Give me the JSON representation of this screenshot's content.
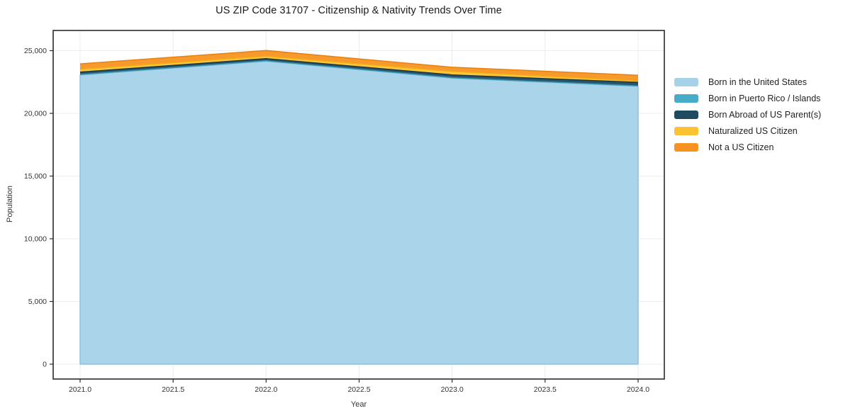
{
  "title": "US ZIP Code 31707 - Citizenship & Nativity Trends Over Time",
  "chart_data": {
    "type": "area",
    "stacked": true,
    "title": "US ZIP Code 31707 - Citizenship & Nativity Trends Over Time",
    "xlabel": "Year",
    "ylabel": "Population",
    "xlim": [
      2021,
      2024
    ],
    "ylim": [
      0,
      25000
    ],
    "grid": true,
    "legend_position": "right",
    "x": [
      2021,
      2022,
      2023,
      2024
    ],
    "series": [
      {
        "name": "Born in the United States",
        "values": [
          23050,
          24150,
          22800,
          22150
        ],
        "fill": "#a5d2e9",
        "line": "#8ec2dd"
      },
      {
        "name": "Born in Puerto Rico / Islands",
        "values": [
          40,
          40,
          40,
          40
        ],
        "fill": "#48abc7",
        "line": "#3597b4"
      },
      {
        "name": "Born Abroad of US Parent(s)",
        "values": [
          200,
          170,
          230,
          280
        ],
        "fill": "#1f4b61",
        "line": "#16374a"
      },
      {
        "name": "Naturalized US Citizen",
        "values": [
          230,
          200,
          280,
          120
        ],
        "fill": "#fdc233",
        "line": "#f0ad12"
      },
      {
        "name": "Not a US Citizen",
        "values": [
          430,
          450,
          330,
          450
        ],
        "fill": "#f79321",
        "line": "#e8820f"
      }
    ],
    "xticks": [
      {
        "v": 2021.0,
        "label": "2021.0"
      },
      {
        "v": 2021.5,
        "label": "2021.5"
      },
      {
        "v": 2022.0,
        "label": "2022.0"
      },
      {
        "v": 2022.5,
        "label": "2022.5"
      },
      {
        "v": 2023.0,
        "label": "2023.0"
      },
      {
        "v": 2023.5,
        "label": "2023.5"
      },
      {
        "v": 2024.0,
        "label": "2024.0"
      }
    ],
    "yticks": [
      {
        "v": 0,
        "label": "0"
      },
      {
        "v": 5000,
        "label": "5,000"
      },
      {
        "v": 10000,
        "label": "10,000"
      },
      {
        "v": 15000,
        "label": "15,000"
      },
      {
        "v": 20000,
        "label": "20,000"
      },
      {
        "v": 25000,
        "label": "25,000"
      }
    ],
    "colors": {
      "gridline": "#ececec",
      "spine": "#2b2b2b",
      "tick_label": "#333333"
    }
  }
}
